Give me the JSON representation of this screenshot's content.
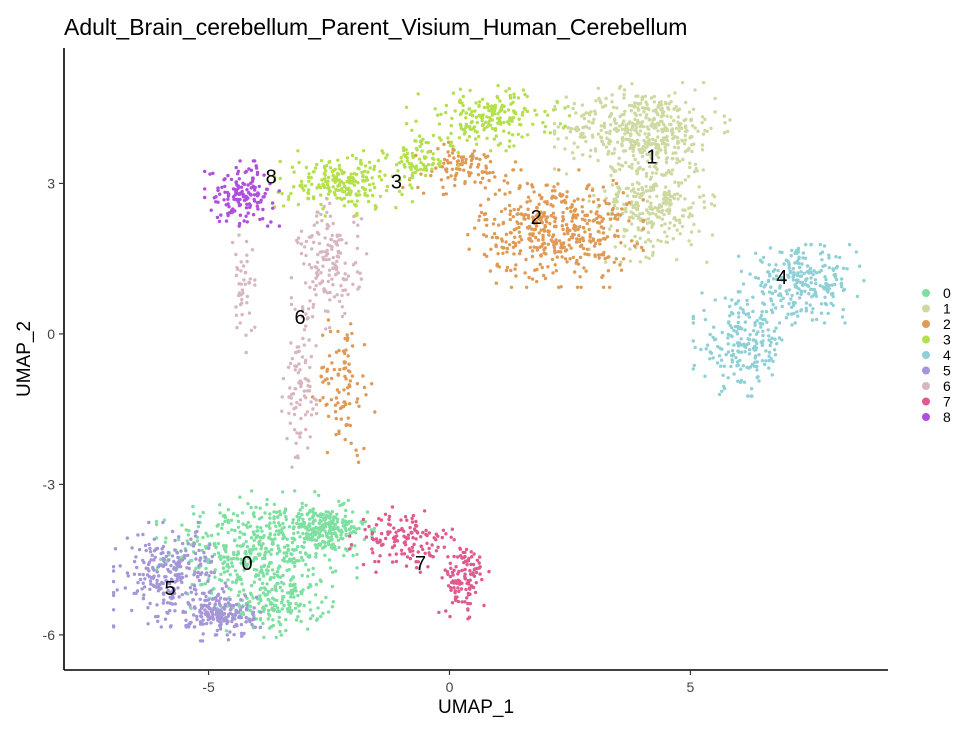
{
  "chart_data": {
    "type": "scatter",
    "title": "Adult_Brain_cerebellum_Parent_Visium_Human_Cerebellum",
    "xlabel": "UMAP_1",
    "ylabel": "UMAP_2",
    "xlim": [
      -8.0,
      9.1
    ],
    "ylim": [
      -6.7,
      5.7
    ],
    "xticks": [
      -5,
      0,
      5
    ],
    "yticks": [
      -6,
      -3,
      0,
      3
    ],
    "grid": false,
    "legend_position": "right",
    "legend": [
      "0",
      "1",
      "2",
      "3",
      "4",
      "5",
      "6",
      "7",
      "8"
    ],
    "colors": {
      "0": "#7ee0a0",
      "1": "#cdd9a0",
      "2": "#e09a55",
      "3": "#b4e04e",
      "4": "#8ed0d6",
      "5": "#a596d8",
      "6": "#d8b6c0",
      "7": "#e0598f",
      "8": "#b04ee0"
    },
    "clusters": [
      {
        "name": "0",
        "label_pos": [
          -4.2,
          -4.6
        ],
        "count": 850,
        "regions": [
          {
            "cx": -4.0,
            "cy": -4.3,
            "rx": 1.6,
            "ry": 0.9,
            "w": 0.55
          },
          {
            "cx": -3.6,
            "cy": -5.4,
            "rx": 0.9,
            "ry": 0.5,
            "w": 0.2
          },
          {
            "cx": -2.6,
            "cy": -3.9,
            "rx": 0.8,
            "ry": 0.4,
            "w": 0.25
          }
        ]
      },
      {
        "name": "1",
        "label_pos": [
          4.2,
          3.5
        ],
        "count": 750,
        "regions": [
          {
            "cx": 4.0,
            "cy": 4.1,
            "rx": 1.4,
            "ry": 0.7,
            "w": 0.6
          },
          {
            "cx": 4.2,
            "cy": 2.6,
            "rx": 1.0,
            "ry": 0.9,
            "w": 0.4
          }
        ]
      },
      {
        "name": "2",
        "label_pos": [
          1.8,
          2.3
        ],
        "count": 650,
        "regions": [
          {
            "cx": 2.2,
            "cy": 2.1,
            "rx": 1.4,
            "ry": 0.9,
            "w": 0.7
          },
          {
            "cx": 0.2,
            "cy": 3.3,
            "rx": 0.9,
            "ry": 0.4,
            "w": 0.15
          },
          {
            "cx": -2.2,
            "cy": -1.0,
            "rx": 0.5,
            "ry": 1.2,
            "w": 0.15
          }
        ]
      },
      {
        "name": "3",
        "label_pos": [
          -1.1,
          3.0
        ],
        "count": 500,
        "regions": [
          {
            "cx": -2.2,
            "cy": 3.0,
            "rx": 1.1,
            "ry": 0.5,
            "w": 0.45
          },
          {
            "cx": 0.8,
            "cy": 4.3,
            "rx": 1.3,
            "ry": 0.5,
            "w": 0.4
          },
          {
            "cx": -0.6,
            "cy": 3.5,
            "rx": 0.6,
            "ry": 0.4,
            "w": 0.15
          }
        ]
      },
      {
        "name": "4",
        "label_pos": [
          6.9,
          1.1
        ],
        "count": 450,
        "regions": [
          {
            "cx": 7.3,
            "cy": 1.0,
            "rx": 1.0,
            "ry": 0.6,
            "w": 0.55
          },
          {
            "cx": 6.1,
            "cy": -0.2,
            "rx": 0.8,
            "ry": 0.8,
            "w": 0.45
          }
        ]
      },
      {
        "name": "5",
        "label_pos": [
          -5.8,
          -5.1
        ],
        "count": 450,
        "regions": [
          {
            "cx": -5.8,
            "cy": -4.8,
            "rx": 0.9,
            "ry": 0.8,
            "w": 0.6
          },
          {
            "cx": -4.7,
            "cy": -5.6,
            "rx": 0.6,
            "ry": 0.4,
            "w": 0.4
          }
        ]
      },
      {
        "name": "6",
        "label_pos": [
          -3.1,
          0.3
        ],
        "count": 300,
        "regions": [
          {
            "cx": -2.5,
            "cy": 1.4,
            "rx": 0.6,
            "ry": 1.0,
            "w": 0.55
          },
          {
            "cx": -3.1,
            "cy": -1.2,
            "rx": 0.3,
            "ry": 1.3,
            "w": 0.3
          },
          {
            "cx": -4.3,
            "cy": 0.8,
            "rx": 0.2,
            "ry": 0.9,
            "w": 0.15
          }
        ]
      },
      {
        "name": "7",
        "label_pos": [
          -0.6,
          -4.6
        ],
        "count": 250,
        "regions": [
          {
            "cx": -0.9,
            "cy": -4.1,
            "rx": 0.9,
            "ry": 0.5,
            "w": 0.55
          },
          {
            "cx": 0.3,
            "cy": -4.9,
            "rx": 0.4,
            "ry": 0.6,
            "w": 0.45
          }
        ]
      },
      {
        "name": "8",
        "label_pos": [
          -3.7,
          3.1
        ],
        "count": 150,
        "regions": [
          {
            "cx": -4.3,
            "cy": 2.8,
            "rx": 0.6,
            "ry": 0.5,
            "w": 1.0
          }
        ]
      }
    ]
  }
}
